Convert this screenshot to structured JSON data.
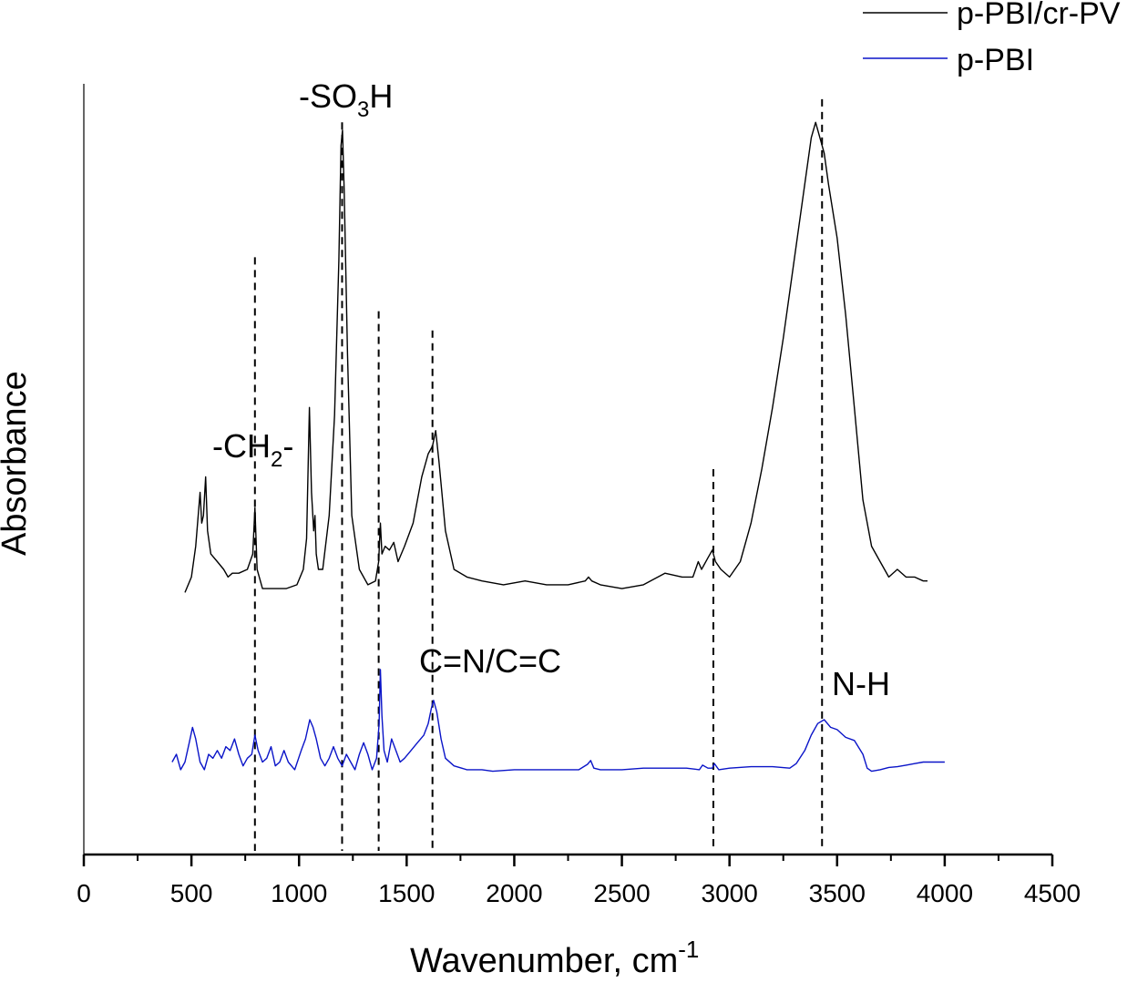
{
  "chart_data": {
    "type": "line",
    "xlabel": "Wavenumber, cm",
    "xlabel_sup": "-1",
    "ylabel": "Absorbance",
    "xlim": [
      0,
      4500
    ],
    "ylim": [
      0,
      1.0
    ],
    "x_ticks": [
      "0",
      "500",
      "1000",
      "1500",
      "2000",
      "2500",
      "3000",
      "3500",
      "4000",
      "4500"
    ],
    "legend_position": "top-right",
    "legend": [
      "p-PBI/cr-PV",
      "p-PBI"
    ],
    "grid": false,
    "annotations": {
      "so3h": {
        "text": "-SO",
        "sub": "3",
        "after": "H"
      },
      "ch2": {
        "text": "-CH",
        "sub": "2",
        "after": "-"
      },
      "cn": {
        "text": "C=N/C=C"
      },
      "nh": {
        "text": "N-H"
      }
    },
    "reference_lines": [
      {
        "x": 795,
        "y_top": 0.775
      },
      {
        "x": 1200,
        "y_top": 0.95
      },
      {
        "x": 1370,
        "y_top": 0.705
      },
      {
        "x": 1620,
        "y_top": 0.68
      },
      {
        "x": 2925,
        "y_top": 0.5
      },
      {
        "x": 3430,
        "y_top": 0.98
      }
    ],
    "series": [
      {
        "name": "p-PBI/cr-PV",
        "color": "#000000",
        "x": [
          470,
          500,
          520,
          540,
          548,
          556,
          566,
          575,
          590,
          620,
          650,
          670,
          690,
          720,
          760,
          785,
          795,
          805,
          830,
          880,
          940,
          990,
          1020,
          1035,
          1048,
          1058,
          1068,
          1074,
          1080,
          1090,
          1110,
          1140,
          1165,
          1185,
          1195,
          1202,
          1210,
          1225,
          1245,
          1280,
          1320,
          1355,
          1370,
          1378,
          1385,
          1400,
          1420,
          1440,
          1460,
          1490,
          1530,
          1570,
          1600,
          1620,
          1635,
          1650,
          1680,
          1720,
          1780,
          1850,
          1950,
          2050,
          2150,
          2250,
          2330,
          2345,
          2360,
          2400,
          2500,
          2600,
          2700,
          2780,
          2830,
          2855,
          2870,
          2900,
          2920,
          2935,
          2960,
          3000,
          3050,
          3100,
          3150,
          3200,
          3250,
          3300,
          3350,
          3380,
          3400,
          3420,
          3440,
          3460,
          3500,
          3540,
          3580,
          3620,
          3660,
          3700,
          3740,
          3780,
          3820,
          3860,
          3900,
          3920
        ],
        "values": [
          0.34,
          0.36,
          0.4,
          0.47,
          0.43,
          0.44,
          0.49,
          0.42,
          0.39,
          0.38,
          0.37,
          0.36,
          0.365,
          0.365,
          0.37,
          0.39,
          0.45,
          0.37,
          0.345,
          0.345,
          0.345,
          0.35,
          0.37,
          0.41,
          0.58,
          0.47,
          0.42,
          0.44,
          0.39,
          0.37,
          0.37,
          0.44,
          0.57,
          0.77,
          0.92,
          0.94,
          0.86,
          0.65,
          0.44,
          0.37,
          0.35,
          0.355,
          0.38,
          0.43,
          0.39,
          0.4,
          0.395,
          0.405,
          0.38,
          0.4,
          0.43,
          0.49,
          0.52,
          0.53,
          0.55,
          0.51,
          0.42,
          0.37,
          0.36,
          0.355,
          0.35,
          0.355,
          0.35,
          0.35,
          0.355,
          0.36,
          0.355,
          0.35,
          0.345,
          0.35,
          0.365,
          0.36,
          0.36,
          0.38,
          0.37,
          0.385,
          0.395,
          0.38,
          0.37,
          0.36,
          0.38,
          0.43,
          0.5,
          0.58,
          0.67,
          0.77,
          0.87,
          0.93,
          0.95,
          0.93,
          0.91,
          0.87,
          0.8,
          0.7,
          0.58,
          0.46,
          0.4,
          0.38,
          0.36,
          0.37,
          0.36,
          0.36,
          0.355,
          0.355
        ]
      },
      {
        "name": "p-PBI",
        "color": "#0a14c8",
        "x": [
          410,
          430,
          450,
          470,
          490,
          505,
          520,
          540,
          560,
          580,
          600,
          620,
          640,
          660,
          680,
          700,
          720,
          740,
          760,
          780,
          795,
          810,
          830,
          850,
          870,
          890,
          910,
          930,
          950,
          980,
          1010,
          1030,
          1050,
          1065,
          1080,
          1100,
          1120,
          1140,
          1160,
          1180,
          1200,
          1220,
          1240,
          1260,
          1280,
          1300,
          1320,
          1340,
          1360,
          1372,
          1378,
          1385,
          1395,
          1410,
          1430,
          1450,
          1470,
          1490,
          1520,
          1550,
          1580,
          1600,
          1615,
          1625,
          1640,
          1660,
          1680,
          1720,
          1780,
          1850,
          1900,
          2000,
          2100,
          2200,
          2300,
          2340,
          2355,
          2370,
          2400,
          2500,
          2600,
          2700,
          2800,
          2860,
          2875,
          2900,
          2920,
          2930,
          2950,
          3000,
          3100,
          3200,
          3280,
          3310,
          3350,
          3380,
          3410,
          3440,
          3470,
          3500,
          3540,
          3580,
          3620,
          3640,
          3660,
          3700,
          3740,
          3780,
          3820,
          3860,
          3900,
          3950,
          4000
        ],
        "values": [
          0.12,
          0.13,
          0.11,
          0.12,
          0.145,
          0.165,
          0.15,
          0.12,
          0.11,
          0.13,
          0.125,
          0.135,
          0.125,
          0.14,
          0.135,
          0.15,
          0.13,
          0.115,
          0.125,
          0.13,
          0.155,
          0.135,
          0.12,
          0.125,
          0.14,
          0.115,
          0.12,
          0.135,
          0.12,
          0.11,
          0.135,
          0.15,
          0.175,
          0.165,
          0.15,
          0.125,
          0.115,
          0.125,
          0.14,
          0.125,
          0.115,
          0.13,
          0.12,
          0.11,
          0.13,
          0.145,
          0.13,
          0.11,
          0.125,
          0.17,
          0.24,
          0.18,
          0.135,
          0.12,
          0.15,
          0.135,
          0.12,
          0.125,
          0.135,
          0.145,
          0.155,
          0.17,
          0.19,
          0.2,
          0.185,
          0.15,
          0.125,
          0.115,
          0.11,
          0.11,
          0.108,
          0.11,
          0.11,
          0.11,
          0.11,
          0.117,
          0.122,
          0.112,
          0.11,
          0.11,
          0.112,
          0.112,
          0.112,
          0.11,
          0.116,
          0.112,
          0.112,
          0.118,
          0.11,
          0.112,
          0.114,
          0.114,
          0.112,
          0.118,
          0.135,
          0.155,
          0.17,
          0.175,
          0.165,
          0.162,
          0.152,
          0.148,
          0.13,
          0.112,
          0.108,
          0.11,
          0.113,
          0.114,
          0.116,
          0.118,
          0.12,
          0.12,
          0.12
        ]
      }
    ]
  }
}
